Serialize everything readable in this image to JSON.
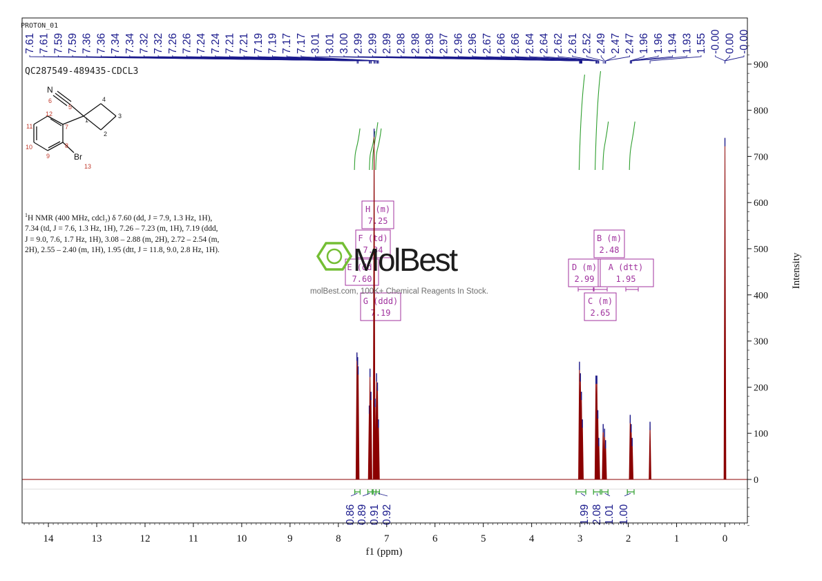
{
  "spectrum_name": "PROTON_01",
  "sample_id": "QC287549-489435-CDCL3",
  "nmr_text": {
    "nucleus_sup": "1",
    "line1": "H NMR (400 MHz, cdcl₃) δ 7.60 (dd, J = 7.9, 1.3 Hz, 1H),",
    "line2": "7.34 (td, J = 7.6, 1.3 Hz, 1H), 7.26 – 7.23 (m, 1H), 7.19 (ddd,",
    "line3": "J = 9.0, 7.6, 1.7 Hz, 1H), 3.08 – 2.88 (m, 2H), 2.72 – 2.54 (m,",
    "line4": "2H), 2.55 – 2.40 (m, 1H), 1.95 (dtt, J = 11.8, 9.0, 2.8 Hz, 1H)."
  },
  "molecule": {
    "atom_labels": [
      "N",
      "Br"
    ],
    "atom_numbers": [
      "1",
      "2",
      "3",
      "4",
      "5",
      "6",
      "7",
      "8",
      "9",
      "10",
      "11",
      "12",
      "13"
    ]
  },
  "watermark": {
    "brand": "MolBest",
    "tagline": "molBest.com, 100K+ Chemical Reagents In Stock."
  },
  "colors": {
    "spectrum": "#8b0000",
    "peak_label": "#1a1a8c",
    "integral": "#2e9e2e",
    "multiplet_box": "#a0329e",
    "watermark": "#6dbb2a"
  },
  "chart_data": {
    "type": "line",
    "xlabel": "f1 (ppm)",
    "ylabel": "Intensity",
    "xlim": [
      14.5,
      -0.45
    ],
    "ylim": [
      -100,
      980
    ],
    "x_reversed": true,
    "x_ticks": [
      14,
      13,
      12,
      11,
      10,
      9,
      8,
      7,
      6,
      5,
      4,
      3,
      2,
      1,
      0
    ],
    "y_ticks": [
      0,
      100,
      200,
      300,
      400,
      500,
      600,
      700,
      800,
      900
    ],
    "peak_labels": [
      "7.61",
      "7.61",
      "7.59",
      "7.59",
      "7.36",
      "7.36",
      "7.34",
      "7.34",
      "7.32",
      "7.32",
      "7.26",
      "7.26",
      "7.24",
      "7.24",
      "7.21",
      "7.21",
      "7.19",
      "7.19",
      "7.17",
      "7.17",
      "3.01",
      "3.01",
      "3.00",
      "2.99",
      "2.99",
      "2.99",
      "2.98",
      "2.98",
      "2.98",
      "2.97",
      "2.96",
      "2.96",
      "2.67",
      "2.66",
      "2.66",
      "2.64",
      "2.64",
      "2.62",
      "2.61",
      "2.52",
      "2.49",
      "2.47",
      "2.47",
      "1.96",
      "1.96",
      "1.94",
      "1.93",
      "1.55",
      "-0.00",
      "0.00",
      "-0.00"
    ],
    "multiplets": [
      {
        "letter": "H",
        "type": "(m)",
        "shift": "7.25"
      },
      {
        "letter": "F",
        "type": "(td)",
        "shift": "7.34"
      },
      {
        "letter": "E",
        "type": "(dd)",
        "shift": "7.60"
      },
      {
        "letter": "G",
        "type": "(ddd)",
        "shift": "7.19"
      },
      {
        "letter": "B",
        "type": "(m)",
        "shift": "2.48"
      },
      {
        "letter": "D",
        "type": "(m)",
        "shift": "2.99"
      },
      {
        "letter": "A",
        "type": "(dtt)",
        "shift": "1.95"
      },
      {
        "letter": "C",
        "type": "(m)",
        "shift": "2.65"
      }
    ],
    "integrals": [
      {
        "value": "0.86",
        "from": 7.66,
        "to": 7.55
      },
      {
        "value": "0.89",
        "from": 7.39,
        "to": 7.3
      },
      {
        "value": "0.91",
        "from": 7.28,
        "to": 7.22
      },
      {
        "value": "0.92",
        "from": 7.22,
        "to": 7.15
      },
      {
        "value": "1.99",
        "from": 3.08,
        "to": 2.88
      },
      {
        "value": "2.08",
        "from": 2.72,
        "to": 2.58
      },
      {
        "value": "1.01",
        "from": 2.55,
        "to": 2.42
      },
      {
        "value": "1.00",
        "from": 2.02,
        "to": 1.88
      }
    ],
    "spectrum_peaks": [
      {
        "ppm": 7.615,
        "height": 275
      },
      {
        "ppm": 7.6,
        "height": 265
      },
      {
        "ppm": 7.59,
        "height": 245
      },
      {
        "ppm": 7.36,
        "height": 160
      },
      {
        "ppm": 7.345,
        "height": 240
      },
      {
        "ppm": 7.325,
        "height": 190
      },
      {
        "ppm": 7.26,
        "height": 760
      },
      {
        "ppm": 7.24,
        "height": 175
      },
      {
        "ppm": 7.21,
        "height": 230
      },
      {
        "ppm": 7.19,
        "height": 210
      },
      {
        "ppm": 7.17,
        "height": 130
      },
      {
        "ppm": 3.01,
        "height": 255
      },
      {
        "ppm": 2.99,
        "height": 230
      },
      {
        "ppm": 2.97,
        "height": 190
      },
      {
        "ppm": 2.95,
        "height": 130
      },
      {
        "ppm": 2.67,
        "height": 225
      },
      {
        "ppm": 2.65,
        "height": 225
      },
      {
        "ppm": 2.63,
        "height": 150
      },
      {
        "ppm": 2.61,
        "height": 90
      },
      {
        "ppm": 2.52,
        "height": 120
      },
      {
        "ppm": 2.49,
        "height": 110
      },
      {
        "ppm": 2.47,
        "height": 85
      },
      {
        "ppm": 1.96,
        "height": 140
      },
      {
        "ppm": 1.94,
        "height": 120
      },
      {
        "ppm": 1.92,
        "height": 90
      },
      {
        "ppm": 1.55,
        "height": 125
      },
      {
        "ppm": 0.0,
        "height": 740
      }
    ]
  }
}
